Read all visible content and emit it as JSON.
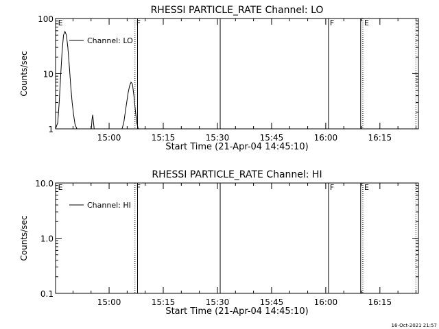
{
  "footer": {
    "timestamp": "16-Oct-2021 21:57"
  },
  "chart_data": [
    {
      "type": "line",
      "title": "RHESSI PARTICLE_RATE Channel: LO",
      "xlabel": "Start Time (21-Apr-04 14:45:10)",
      "ylabel": "Counts/sec",
      "yscale": "log",
      "xlim_minutes": [
        0,
        100.5
      ],
      "ylim": [
        1,
        100
      ],
      "x_ticks": [
        {
          "label": "15:00",
          "minutes": 14.83
        },
        {
          "label": "15:15",
          "minutes": 29.83
        },
        {
          "label": "15:30",
          "minutes": 44.83
        },
        {
          "label": "15:45",
          "minutes": 59.83
        },
        {
          "label": "16:00",
          "minutes": 74.83
        },
        {
          "label": "16:15",
          "minutes": 89.83
        }
      ],
      "y_ticks": [
        {
          "label": "1",
          "value": 1
        },
        {
          "label": "10",
          "value": 10
        },
        {
          "label": "100",
          "value": 100
        }
      ],
      "legend": {
        "label": "Channel: LO",
        "placement": "top-left"
      },
      "series": [
        {
          "name": "Channel: LO",
          "x_minutes": [
            0.0,
            0.6,
            1.0,
            1.4,
            1.8,
            2.2,
            2.6,
            3.0,
            3.4,
            3.8,
            4.2,
            4.6,
            5.0,
            5.4,
            5.9,
            9.9,
            10.1,
            10.3,
            10.5,
            10.7,
            18.4,
            18.9,
            19.3,
            19.7,
            20.1,
            20.5,
            20.9,
            21.3,
            21.7,
            22.1,
            22.5,
            22.9
          ],
          "values": [
            1,
            1.3,
            3,
            9,
            25,
            50,
            58,
            50,
            30,
            14,
            6,
            3,
            1.8,
            1.2,
            1,
            1,
            1.5,
            1.8,
            1.3,
            1,
            1,
            1.3,
            2,
            3,
            4.5,
            6,
            7,
            6.5,
            4,
            2.2,
            1.3,
            1
          ]
        }
      ],
      "markers": [
        {
          "label": "E",
          "minutes": 0.3,
          "style": "none"
        },
        {
          "label": "F",
          "minutes": 22.0,
          "style": "dotted"
        },
        {
          "label": "",
          "minutes": 22.7,
          "style": "solid"
        },
        {
          "label": "",
          "minutes": 45.6,
          "style": "solid"
        },
        {
          "label": "F",
          "minutes": 75.6,
          "style": "solid"
        },
        {
          "label": "",
          "minutes": 84.5,
          "style": "solid"
        },
        {
          "label": "E",
          "minutes": 85.1,
          "style": "dotted"
        },
        {
          "label": "",
          "minutes": 99.8,
          "style": "dotted"
        }
      ]
    },
    {
      "type": "line",
      "title": "RHESSI PARTICLE_RATE Channel: HI",
      "xlabel": "Start Time (21-Apr-04 14:45:10)",
      "ylabel": "Counts/sec",
      "yscale": "log",
      "xlim_minutes": [
        0,
        100.5
      ],
      "ylim": [
        0.1,
        10
      ],
      "x_ticks": [
        {
          "label": "15:00",
          "minutes": 14.83
        },
        {
          "label": "15:15",
          "minutes": 29.83
        },
        {
          "label": "15:30",
          "minutes": 44.83
        },
        {
          "label": "15:45",
          "minutes": 59.83
        },
        {
          "label": "16:00",
          "minutes": 74.83
        },
        {
          "label": "16:15",
          "minutes": 89.83
        }
      ],
      "y_ticks": [
        {
          "label": "0.1",
          "value": 0.1
        },
        {
          "label": "1.0",
          "value": 1
        },
        {
          "label": "10.0",
          "value": 10
        }
      ],
      "legend": {
        "label": "Channel: HI",
        "placement": "top-left"
      },
      "series": [
        {
          "name": "Channel: HI",
          "x_minutes": [],
          "values": []
        }
      ],
      "markers": [
        {
          "label": "E",
          "minutes": 0.3,
          "style": "none"
        },
        {
          "label": "F",
          "minutes": 22.0,
          "style": "dotted"
        },
        {
          "label": "",
          "minutes": 22.7,
          "style": "solid"
        },
        {
          "label": "",
          "minutes": 45.6,
          "style": "solid"
        },
        {
          "label": "F",
          "minutes": 75.6,
          "style": "solid"
        },
        {
          "label": "",
          "minutes": 84.5,
          "style": "solid"
        },
        {
          "label": "E",
          "minutes": 85.1,
          "style": "dotted"
        },
        {
          "label": "",
          "minutes": 99.8,
          "style": "dotted"
        }
      ]
    }
  ]
}
